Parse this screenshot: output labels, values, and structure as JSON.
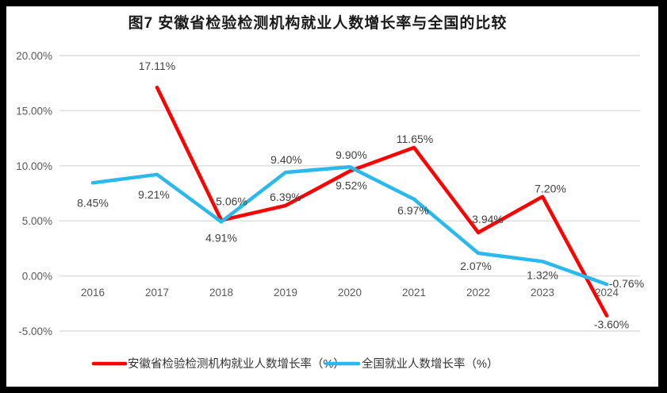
{
  "title": "图7  安徽省检验检测机构就业人数增长率与全国的比较",
  "colors": {
    "border": "#000000",
    "background": "#FFFFFF",
    "grid": "#DCDCDC",
    "axis_text": "#595959",
    "label_text": "#404040",
    "legend_text": "#333333",
    "series_red": "#FF0000",
    "series_blue": "#29B9EC"
  },
  "chart_data": {
    "type": "line",
    "title": "图7  安徽省检验检测机构就业人数增长率与全国的比较",
    "categories": [
      "2016",
      "2017",
      "2018",
      "2019",
      "2020",
      "2021",
      "2022",
      "2023",
      "2024"
    ],
    "series": [
      {
        "name": "安徽省检验检测机构就业人数增长率（%）",
        "color": "#FF0000",
        "values": [
          null,
          17.11,
          5.06,
          6.39,
          9.52,
          11.65,
          3.94,
          7.2,
          -3.6
        ],
        "labels": [
          null,
          "17.11%",
          "5.06%",
          "6.39%",
          "9.52%",
          "11.65%",
          "3.94%",
          "7.20%",
          "-3.60%"
        ]
      },
      {
        "name": "全国就业人数增长率（%）",
        "color": "#29B9EC",
        "values": [
          8.45,
          9.21,
          4.91,
          9.4,
          9.9,
          6.97,
          2.07,
          1.32,
          -0.76
        ],
        "labels": [
          "8.45%",
          "9.21%",
          "4.91%",
          "9.40%",
          "9.90%",
          "6.97%",
          "2.07%",
          "1.32%",
          "-0.76%"
        ]
      }
    ],
    "yticks": [
      "20.00%",
      "15.00%",
      "10.00%",
      "5.00%",
      "0.00%",
      "-5.00%"
    ],
    "ytick_values": [
      20,
      15,
      10,
      5,
      0,
      -5
    ],
    "ylim": [
      -5,
      20
    ],
    "grid": true,
    "legend_position": "bottom",
    "data_labels": true
  }
}
